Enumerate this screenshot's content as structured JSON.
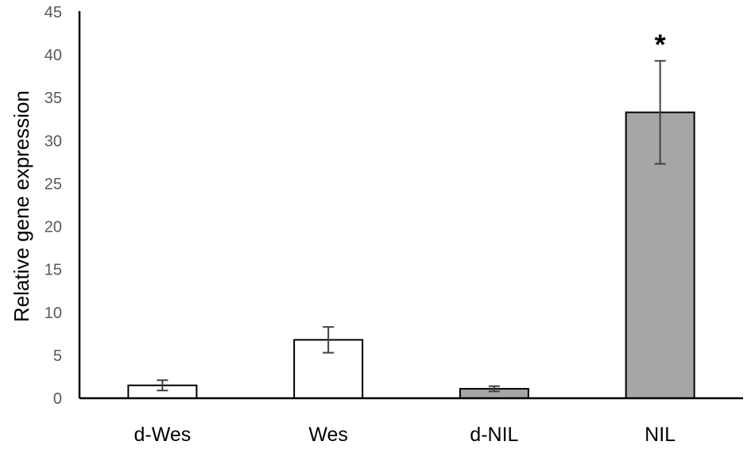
{
  "chart_data": {
    "type": "bar",
    "title": "",
    "xlabel": "",
    "ylabel": "Relative gene expression",
    "ylim": [
      0,
      45
    ],
    "yticks": [
      0,
      5,
      10,
      15,
      20,
      25,
      30,
      35,
      40,
      45
    ],
    "ytick_labels": [
      "0",
      "5",
      "10",
      "15",
      "20",
      "25",
      "30",
      "35",
      "40",
      "45"
    ],
    "grid": false,
    "categories": [
      "d-Wes",
      "Wes",
      "d-NIL",
      "NIL"
    ],
    "values": [
      1.5,
      6.8,
      1.1,
      33.3
    ],
    "error": [
      0.6,
      1.5,
      0.3,
      6.0
    ],
    "bar_colors": [
      "#ffffff",
      "#ffffff",
      "#a6a6a6",
      "#a6a6a6"
    ],
    "annotations": [
      {
        "category": "NIL",
        "text": "*"
      }
    ]
  }
}
